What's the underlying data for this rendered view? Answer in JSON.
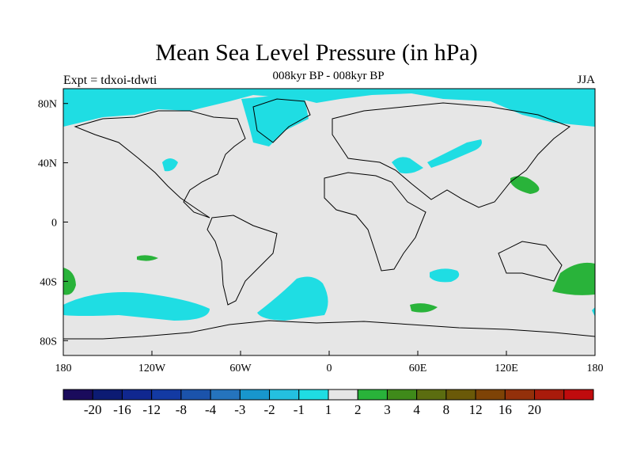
{
  "title": "Mean Sea Level Pressure (in hPa)",
  "subtitle": "008kyr BP - 008kyr BP",
  "experiment_label": "Expt = tdxoi-tdwti",
  "season_label": "JJA",
  "colors": {
    "ocean_background": "#e6e6e6",
    "coastline": "#000000",
    "negative_anomaly": "#1fdde3",
    "positive_anomaly": "#29b33a"
  },
  "axes": {
    "x_ticks": [
      "180",
      "120W",
      "60W",
      "0",
      "60E",
      "120E",
      "180"
    ],
    "y_ticks": [
      "80N",
      "40N",
      "0",
      "40S",
      "80S"
    ],
    "lon_range": [
      -180,
      180
    ],
    "lat_range": [
      -90,
      90
    ]
  },
  "colorbar": {
    "colors": [
      "#1a0b5c",
      "#0c1b73",
      "#10278f",
      "#133aa3",
      "#1b53ab",
      "#2574bd",
      "#1896cd",
      "#24c0df",
      "#1fdde3",
      "#e6e6e6",
      "#29b33a",
      "#3f8a1a",
      "#5b6d10",
      "#6a5908",
      "#7e4306",
      "#93300a",
      "#a91b0b",
      "#c00b0d"
    ],
    "labels": [
      "-20",
      "-16",
      "-12",
      "-8",
      "-4",
      "-3",
      "-2",
      "-1",
      "1",
      "2",
      "3",
      "4",
      "8",
      "12",
      "16",
      "20"
    ]
  }
}
